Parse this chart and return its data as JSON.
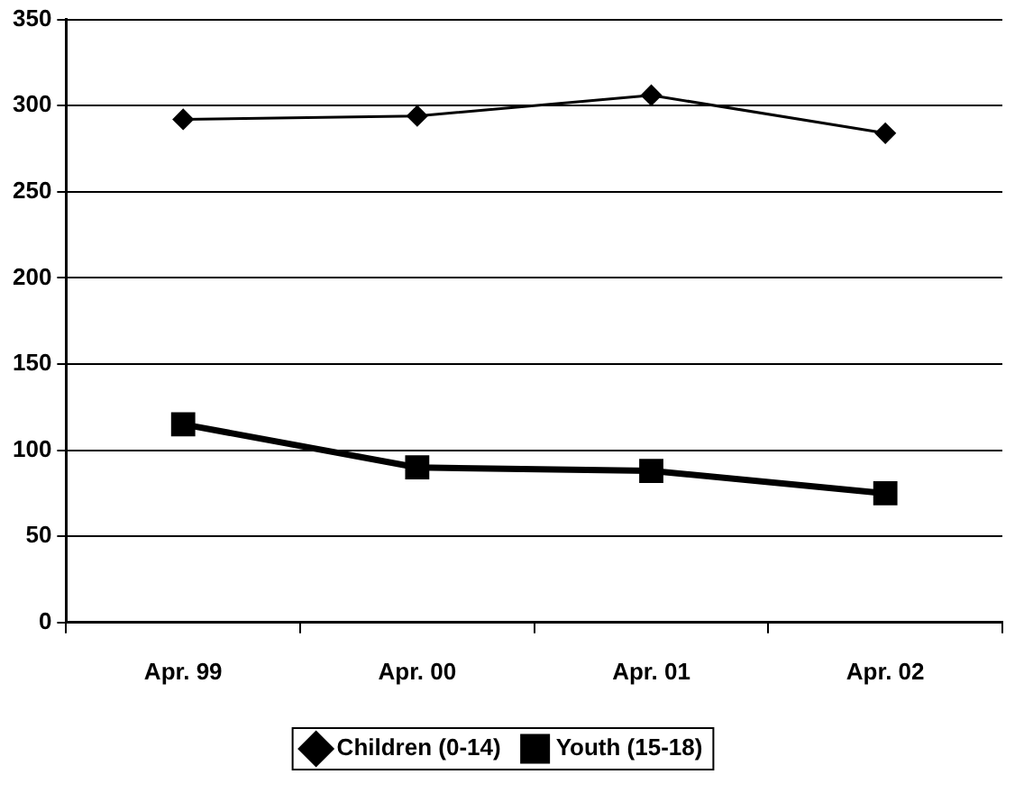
{
  "chart_data": {
    "type": "line",
    "categories": [
      "Apr. 99",
      "Apr. 00",
      "Apr. 01",
      "Apr. 02"
    ],
    "series": [
      {
        "name": "Children (0-14)",
        "color": "#000000",
        "values": [
          292,
          294,
          306,
          284
        ],
        "marker": "diamond"
      },
      {
        "name": "Youth (15-18)",
        "color": "#000000",
        "values": [
          115,
          90,
          88,
          75
        ],
        "marker": "square"
      }
    ],
    "ylim": [
      0,
      350
    ],
    "yticks": [
      0,
      50,
      100,
      150,
      200,
      250,
      300,
      350
    ],
    "grid": "y",
    "legend": "bottom",
    "line_style": "solid"
  }
}
